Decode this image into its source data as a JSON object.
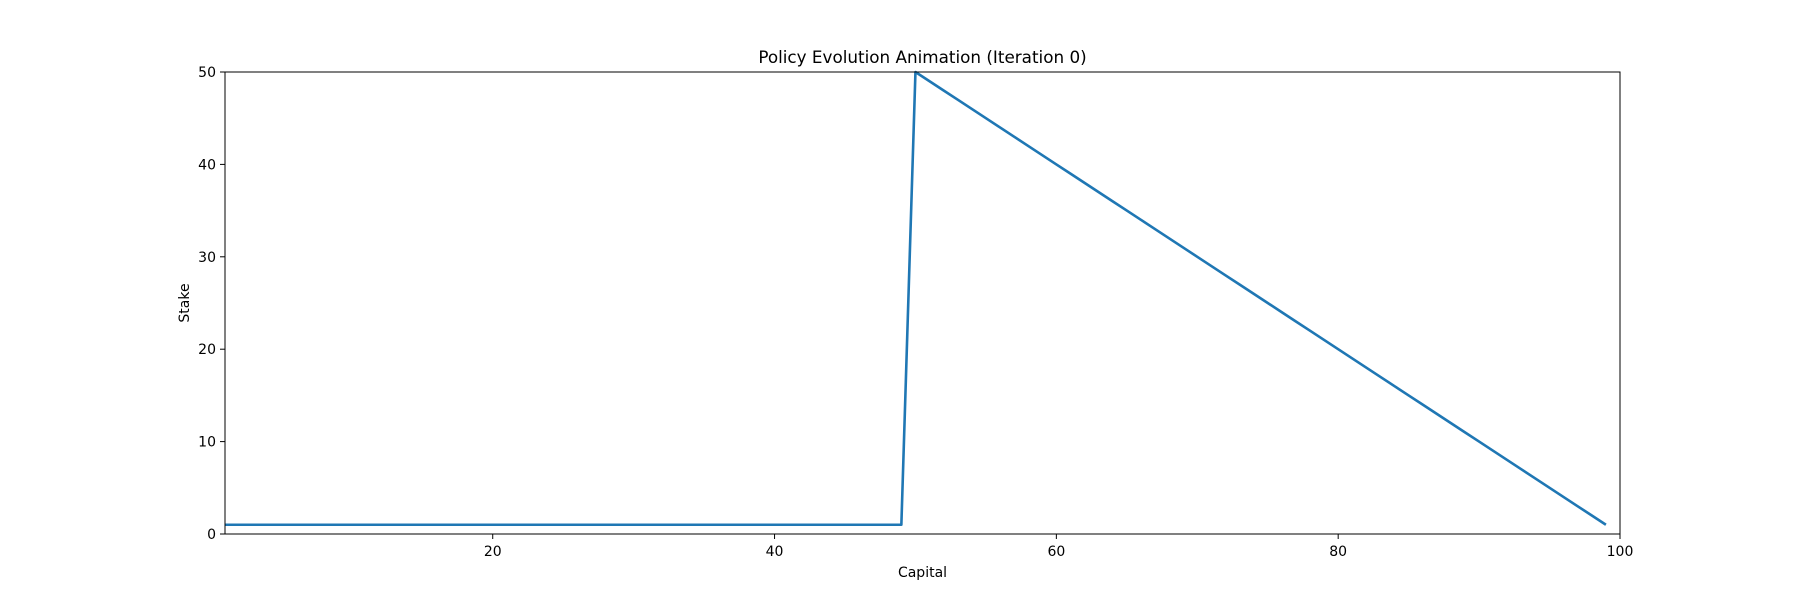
{
  "chart_data": {
    "type": "line",
    "title": "Policy Evolution Animation (Iteration 0)",
    "xlabel": "Capital",
    "ylabel": "Stake",
    "xlim": [
      1,
      100
    ],
    "ylim": [
      0,
      50
    ],
    "xticks": [
      20,
      40,
      60,
      80,
      100
    ],
    "yticks": [
      0,
      10,
      20,
      30,
      40,
      50
    ],
    "grid": false,
    "legend": "none",
    "series": [
      {
        "color": "#1f77b4",
        "x": [
          1,
          2,
          3,
          4,
          5,
          6,
          7,
          8,
          9,
          10,
          11,
          12,
          13,
          14,
          15,
          16,
          17,
          18,
          19,
          20,
          21,
          22,
          23,
          24,
          25,
          26,
          27,
          28,
          29,
          30,
          31,
          32,
          33,
          34,
          35,
          36,
          37,
          38,
          39,
          40,
          41,
          42,
          43,
          44,
          45,
          46,
          47,
          48,
          49,
          50,
          51,
          52,
          53,
          54,
          55,
          56,
          57,
          58,
          59,
          60,
          61,
          62,
          63,
          64,
          65,
          66,
          67,
          68,
          69,
          70,
          71,
          72,
          73,
          74,
          75,
          76,
          77,
          78,
          79,
          80,
          81,
          82,
          83,
          84,
          85,
          86,
          87,
          88,
          89,
          90,
          91,
          92,
          93,
          94,
          95,
          96,
          97,
          98,
          99
        ],
        "y": [
          1,
          1,
          1,
          1,
          1,
          1,
          1,
          1,
          1,
          1,
          1,
          1,
          1,
          1,
          1,
          1,
          1,
          1,
          1,
          1,
          1,
          1,
          1,
          1,
          1,
          1,
          1,
          1,
          1,
          1,
          1,
          1,
          1,
          1,
          1,
          1,
          1,
          1,
          1,
          1,
          1,
          1,
          1,
          1,
          1,
          1,
          1,
          1,
          1,
          50,
          49,
          48,
          47,
          46,
          45,
          44,
          43,
          42,
          41,
          40,
          39,
          38,
          37,
          36,
          35,
          34,
          33,
          32,
          31,
          30,
          29,
          28,
          27,
          26,
          25,
          24,
          23,
          22,
          21,
          20,
          19,
          18,
          17,
          16,
          15,
          14,
          13,
          12,
          11,
          10,
          9,
          8,
          7,
          6,
          5,
          4,
          3,
          2,
          1
        ]
      }
    ]
  }
}
